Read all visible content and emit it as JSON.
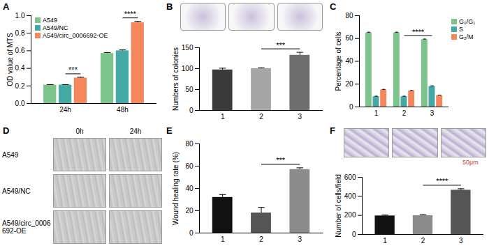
{
  "chart_data": [
    {
      "type": "bar",
      "title": "A",
      "categories": [
        "24h",
        "48h"
      ],
      "series": [
        {
          "name": "A549",
          "color": "#7cc48c",
          "values": [
            0.21,
            0.57
          ],
          "errors": [
            0.005,
            0.01
          ]
        },
        {
          "name": "A549/NC",
          "color": "#45aaa6",
          "values": [
            0.21,
            0.6
          ],
          "errors": [
            0.005,
            0.01
          ]
        },
        {
          "name": "A549/circ_0006692-OE",
          "color": "#f4875c",
          "values": [
            0.29,
            0.92
          ],
          "errors": [
            0.008,
            0.015
          ]
        }
      ],
      "ylabel": "OD value of MTS",
      "ylim": [
        0,
        1.0
      ],
      "yticks": [
        {
          "value": 0,
          "label": "0.0"
        },
        {
          "value": 0.2,
          "label": "0.2"
        },
        {
          "value": 0.4,
          "label": "0.4"
        },
        {
          "value": 0.6,
          "label": "0.6"
        },
        {
          "value": 0.8,
          "label": "0.8"
        },
        {
          "value": 1.0,
          "label": "1.0"
        }
      ],
      "legend": "top-left",
      "annotations": [
        {
          "text": "***",
          "category": "24h",
          "from": "A549/NC",
          "to": "A549/circ_0006692-OE"
        },
        {
          "text": "****",
          "category": "48h",
          "from": "A549/NC",
          "to": "A549/circ_0006692-OE"
        }
      ]
    },
    {
      "type": "bar",
      "title": "B",
      "categories": [
        "1",
        "2",
        "3"
      ],
      "values": [
        97,
        100,
        132
      ],
      "errors": [
        4,
        2,
        7
      ],
      "colors": [
        "#3a3a3a",
        "#a6a6a6",
        "#6e6e6e"
      ],
      "ylabel": "Numbers of colonies",
      "ylim": [
        0,
        150
      ],
      "yticks": [
        0,
        50,
        100,
        150
      ],
      "annotations": [
        {
          "text": "***",
          "from": "2",
          "to": "3"
        }
      ]
    },
    {
      "type": "bar",
      "title": "C",
      "categories": [
        "1",
        "2",
        "3"
      ],
      "series": [
        {
          "name": "G₀/G₁",
          "color": "#7cc48c",
          "values": [
            65,
            65,
            59
          ],
          "errors": [
            0.5,
            0.5,
            0.5
          ]
        },
        {
          "name": "S",
          "color": "#45aaa6",
          "values": [
            9,
            9,
            18
          ],
          "errors": [
            0.4,
            0.4,
            0.5
          ]
        },
        {
          "name": "G₂/M",
          "color": "#f4875c",
          "values": [
            15,
            14,
            10
          ],
          "errors": [
            0.4,
            0.4,
            0.4
          ]
        }
      ],
      "ylabel": "Percentage of cells",
      "ylim": [
        0,
        80
      ],
      "yticks": [
        0,
        20,
        40,
        60,
        80
      ],
      "legend": "top-right",
      "annotations": [
        {
          "text": "****",
          "series": "S",
          "from": "2",
          "to": "3"
        }
      ]
    },
    {
      "type": "image_grid",
      "title": "D",
      "columns": [
        "0h",
        "24h"
      ],
      "rows": [
        "A549",
        "A549/NC",
        "A549/circ_0006692-OE"
      ]
    },
    {
      "type": "bar",
      "title": "E",
      "categories": [
        "1",
        "2",
        "3"
      ],
      "values": [
        32,
        18,
        57
      ],
      "errors": [
        2.5,
        5,
        1.5
      ],
      "colors": [
        "#111111",
        "#555555",
        "#8c8c8c"
      ],
      "ylabel": "Wound healing rate (%)",
      "ylim": [
        0,
        80
      ],
      "yticks": [
        0,
        20,
        40,
        60,
        80
      ],
      "annotations": [
        {
          "text": "***",
          "from": "2",
          "to": "3"
        }
      ]
    },
    {
      "type": "bar",
      "title": "F",
      "categories": [
        "1",
        "2",
        "3"
      ],
      "values": [
        195,
        198,
        465
      ],
      "errors": [
        8,
        10,
        15
      ],
      "colors": [
        "#111111",
        "#8c8c8c",
        "#555555"
      ],
      "ylabel": "Number of cells/field",
      "ylim": [
        0,
        600
      ],
      "yticks": [
        0,
        200,
        400,
        600
      ],
      "image_label": "50μm",
      "annotations": [
        {
          "text": "****",
          "from": "2",
          "to": "3"
        }
      ]
    }
  ]
}
